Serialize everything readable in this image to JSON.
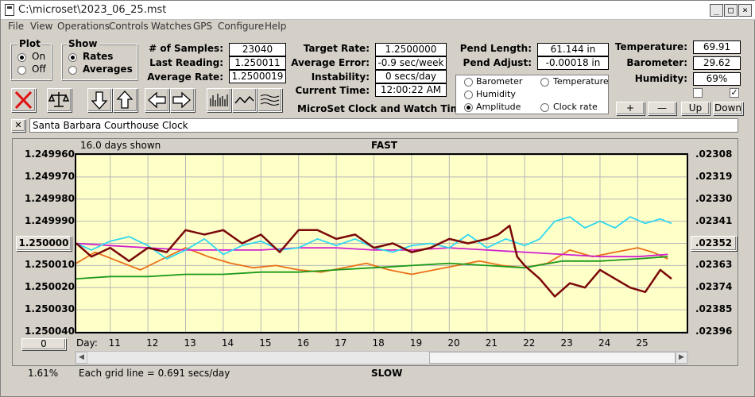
{
  "window": {
    "title": "C:\\microset\\2023_06_25.mst"
  },
  "menu": [
    "File",
    "View",
    "Operations",
    "Controls",
    "Watches",
    "GPS",
    "Configure",
    "Help"
  ],
  "plot_group": {
    "label": "Plot",
    "on": "On",
    "off": "Off",
    "selected": "On"
  },
  "show_group": {
    "label": "Show",
    "rates": "Rates",
    "averages": "Averages",
    "selected": "Rates"
  },
  "stats": {
    "samples_label": "# of Samples:",
    "samples": "23040",
    "last_label": "Last Reading:",
    "last": "1.250011",
    "avg_rate_label": "Average Rate:",
    "avg_rate": "1.2500019",
    "target_label": "Target Rate:",
    "target": "1.2500000",
    "avg_err_label": "Average Error:",
    "avg_err": "-0.9 sec/week",
    "instab_label": "Instability:",
    "instab": "0 secs/day",
    "time_label": "Current Time:",
    "time": "12:00:22 AM",
    "pend_len_label": "Pend Length:",
    "pend_len": "61.144 in",
    "pend_adj_label": "Pend Adjust:",
    "pend_adj": "-0.00018 in",
    "temp_label": "Temperature:",
    "temp": "69.91",
    "baro_label": "Barometer:",
    "baro": "29.62",
    "hum_label": "Humidity:",
    "hum": "69%"
  },
  "app_caption": "MicroSet Clock and Watch Timer",
  "series_options": [
    {
      "label": "Barometer",
      "color": "#e8701a",
      "selected": false
    },
    {
      "label": "Temperature",
      "color": "#1a9a1a",
      "selected": false
    },
    {
      "label": "Humidity",
      "color": "#a000a0",
      "selected": false
    },
    {
      "label": "Amplitude",
      "color": "#20c0e0",
      "selected": true
    },
    {
      "label": "Clock rate",
      "color": "#8b1010",
      "selected": false
    }
  ],
  "adjust_buttons": {
    "plus": "+",
    "minus": "—",
    "up": "Up",
    "down": "Down"
  },
  "checkboxes": {
    "left_checked": false,
    "right_checked": true
  },
  "clock_name": "Santa Barbara Courthouse Clock",
  "close_x": "✕",
  "chart_labels": {
    "days_shown": "16.0 days shown",
    "top": "FAST",
    "bottom": "SLOW",
    "grid_note": "Each grid line = 0.691 secs/day",
    "percent": "1.61%",
    "center_button": "1.250000",
    "right_center_button": ".02352",
    "zero_button": "0",
    "day_label": "Day:"
  },
  "chart_data": {
    "type": "line",
    "x_label": "Day",
    "xlim": [
      10.1,
      26.3
    ],
    "x_ticks": [
      "11",
      "12",
      "13",
      "14",
      "15",
      "16",
      "17",
      "18",
      "19",
      "20",
      "21",
      "22",
      "23",
      "24",
      "25"
    ],
    "x_tick_values": [
      11,
      12,
      13,
      14,
      15,
      16,
      17,
      18,
      19,
      20,
      21,
      22,
      23,
      24,
      25
    ],
    "y_left_ticks": [
      "1.249960",
      "1.249970",
      "1.249980",
      "1.249990",
      "1.250000",
      "1.250010",
      "1.250020",
      "1.250030",
      "1.250040"
    ],
    "y_left_range": [
      1.24996,
      1.25004
    ],
    "y_right_ticks": [
      ".02308",
      ".02319",
      ".02330",
      ".02341",
      ".02352",
      ".02363",
      ".02374",
      ".02385",
      ".02396"
    ],
    "y_right_range": [
      0.02308,
      0.02396
    ],
    "grid": true,
    "series": [
      {
        "name": "Barometer",
        "color": "#e8701a",
        "x": [
          10.1,
          10.6,
          11.2,
          11.8,
          12.4,
          13,
          13.6,
          14.2,
          14.8,
          15.4,
          16,
          16.6,
          17.2,
          17.8,
          18.4,
          19,
          19.6,
          20.2,
          20.8,
          21.4,
          22,
          22.6,
          23.2,
          23.8,
          24.4,
          25,
          25.4,
          25.8
        ],
        "y": [
          1.250009,
          1.250004,
          1.250008,
          1.250012,
          1.250007,
          1.250002,
          1.250006,
          1.250009,
          1.250011,
          1.25001,
          1.250012,
          1.250013,
          1.250011,
          1.250009,
          1.250012,
          1.250014,
          1.250012,
          1.25001,
          1.250008,
          1.25001,
          1.250011,
          1.250009,
          1.250003,
          1.250006,
          1.250004,
          1.250002,
          1.250004,
          1.250007
        ]
      },
      {
        "name": "Temperature",
        "color": "#1a9a1a",
        "x": [
          10.1,
          11,
          12,
          13,
          14,
          15,
          16,
          17,
          18,
          19,
          20,
          21,
          22,
          23,
          24,
          25,
          25.8
        ],
        "y": [
          1.250016,
          1.250015,
          1.250015,
          1.250014,
          1.250014,
          1.250013,
          1.250013,
          1.250012,
          1.250011,
          1.25001,
          1.250009,
          1.25001,
          1.250011,
          1.250008,
          1.250008,
          1.250007,
          1.250006
        ]
      },
      {
        "name": "Humidity",
        "color": "#d020d0",
        "x": [
          10.1,
          11,
          12,
          13,
          14,
          15,
          16,
          17,
          18,
          19,
          20,
          21,
          22,
          23,
          24,
          25,
          25.8
        ],
        "y": [
          1.25,
          1.250001,
          1.250002,
          1.250003,
          1.250003,
          1.250003,
          1.250002,
          1.250002,
          1.250003,
          1.250003,
          1.250002,
          1.250003,
          1.250004,
          1.250005,
          1.250006,
          1.250006,
          1.250005
        ]
      },
      {
        "name": "Amplitude",
        "color": "#30d8f0",
        "x": [
          10.1,
          10.5,
          11,
          11.5,
          12,
          12.5,
          13,
          13.5,
          14,
          14.5,
          15,
          15.5,
          16,
          16.5,
          17,
          17.5,
          18,
          18.5,
          19,
          19.5,
          20,
          20.5,
          21,
          21.5,
          22,
          22.4,
          22.8,
          23.2,
          23.6,
          24,
          24.4,
          24.8,
          25.2,
          25.6,
          25.9
        ],
        "y": [
          1.25,
          1.250003,
          1.249999,
          1.249997,
          1.250001,
          1.250007,
          1.250003,
          1.249998,
          1.250005,
          1.250001,
          1.249999,
          1.250003,
          1.250002,
          1.249998,
          1.250001,
          1.249998,
          1.250002,
          1.250004,
          1.250001,
          1.25,
          1.250002,
          1.249996,
          1.250002,
          1.249998,
          1.250001,
          1.249998,
          1.24999,
          1.249988,
          1.249993,
          1.24999,
          1.249993,
          1.249988,
          1.249991,
          1.249989,
          1.249991
        ]
      },
      {
        "name": "Clock rate",
        "color": "#7a0808",
        "x": [
          10.1,
          10.5,
          11,
          11.5,
          12,
          12.5,
          13,
          13.5,
          14,
          14.5,
          15,
          15.5,
          16,
          16.5,
          17,
          17.5,
          18,
          18.5,
          19,
          19.5,
          20,
          20.5,
          21,
          21.3,
          21.6,
          21.8,
          22,
          22.4,
          22.8,
          23.2,
          23.6,
          24,
          24.4,
          24.8,
          25.2,
          25.6,
          25.9
        ],
        "y": [
          1.25,
          1.250006,
          1.250002,
          1.250008,
          1.250002,
          1.250004,
          1.249994,
          1.249996,
          1.249994,
          1.25,
          1.249996,
          1.250004,
          1.249994,
          1.249994,
          1.249998,
          1.249996,
          1.250002,
          1.25,
          1.250004,
          1.250002,
          1.249998,
          1.25,
          1.249998,
          1.249996,
          1.249992,
          1.250006,
          1.25001,
          1.250016,
          1.250024,
          1.250018,
          1.25002,
          1.250012,
          1.250016,
          1.25002,
          1.250022,
          1.250012,
          1.250016
        ]
      }
    ]
  }
}
